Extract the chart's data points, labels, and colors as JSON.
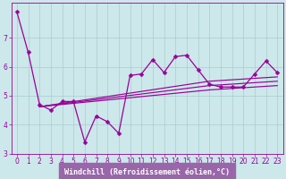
{
  "xlabel": "Windchill (Refroidissement éolien,°C)",
  "bg_color": "#cce8ea",
  "grid_color": "#aacccc",
  "line_color": "#990099",
  "xlabel_bg": "#9966aa",
  "xlabel_fg": "#ffffff",
  "xlim": [
    -0.5,
    23.5
  ],
  "ylim": [
    3.0,
    8.2
  ],
  "xticks": [
    0,
    1,
    2,
    3,
    4,
    5,
    6,
    7,
    8,
    9,
    10,
    11,
    12,
    13,
    14,
    15,
    16,
    17,
    18,
    19,
    20,
    21,
    22,
    23
  ],
  "yticks": [
    3,
    4,
    5,
    6,
    7
  ],
  "main_x": [
    0,
    1,
    2,
    3,
    4,
    5,
    6,
    7,
    8,
    9,
    10,
    11,
    12,
    13,
    14,
    15,
    16,
    17,
    18,
    19,
    20,
    21,
    22,
    23
  ],
  "main_y": [
    7.9,
    6.5,
    4.7,
    4.5,
    4.8,
    4.8,
    3.4,
    4.3,
    4.1,
    3.7,
    5.7,
    5.75,
    6.25,
    5.8,
    6.35,
    6.4,
    5.9,
    5.4,
    5.3,
    5.3,
    5.3,
    5.75,
    6.2,
    5.8
  ],
  "trend1_x": [
    2,
    17,
    23
  ],
  "trend1_y": [
    4.62,
    5.35,
    5.5
  ],
  "trend2_x": [
    2,
    17,
    23
  ],
  "trend2_y": [
    4.62,
    5.2,
    5.35
  ],
  "trend3_x": [
    2,
    17,
    23
  ],
  "trend3_y": [
    4.62,
    5.5,
    5.65
  ],
  "marker_style": "D",
  "marker_size": 2.5,
  "line_width": 0.9,
  "tick_fontsize": 5.5,
  "xlabel_fontsize": 6.0
}
